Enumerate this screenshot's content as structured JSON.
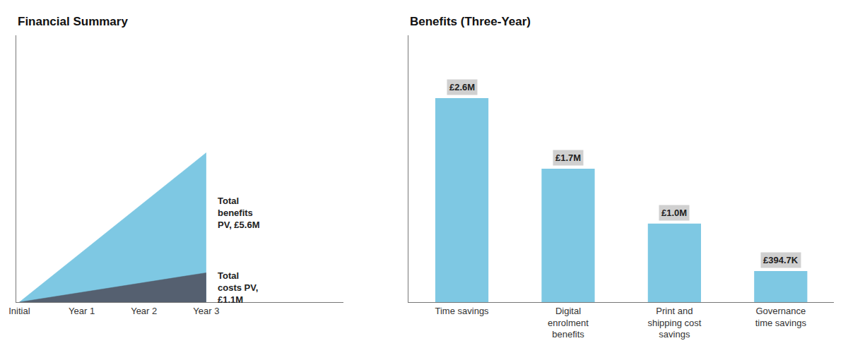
{
  "chart_data": [
    {
      "type": "area",
      "title": "Financial Summary",
      "categories": [
        "Initial",
        "Year 1",
        "Year 2",
        "Year 3"
      ],
      "series": [
        {
          "color": "#7EC8E3",
          "values": [
            0,
            null,
            null,
            5.6
          ]
        },
        {
          "color": "#556070",
          "values": [
            0,
            null,
            null,
            1.1
          ]
        }
      ],
      "annotations": [
        "Total\nbenefits\nPV, £5.6M",
        "Total\ncosts PV,\n£1.1M"
      ],
      "ylim": [
        0,
        10
      ],
      "grid": false,
      "tick_labels": "x"
    },
    {
      "type": "bar",
      "title": "Benefits (Three-Year)",
      "categories": [
        "Time savings",
        "Digital\nenrolment\nbenefits",
        "Print and\nshipping cost\nsavings",
        "Governance\ntime savings"
      ],
      "values": [
        2.6,
        1.7,
        1.0,
        0.3947
      ],
      "value_labels": [
        "£2.6M",
        "£1.7M",
        "£1.0M",
        "£394.7K"
      ],
      "color": "#7EC8E3",
      "data_labels": true,
      "ylim": [
        0,
        3.4
      ],
      "grid": false,
      "tick_labels": "x"
    }
  ]
}
